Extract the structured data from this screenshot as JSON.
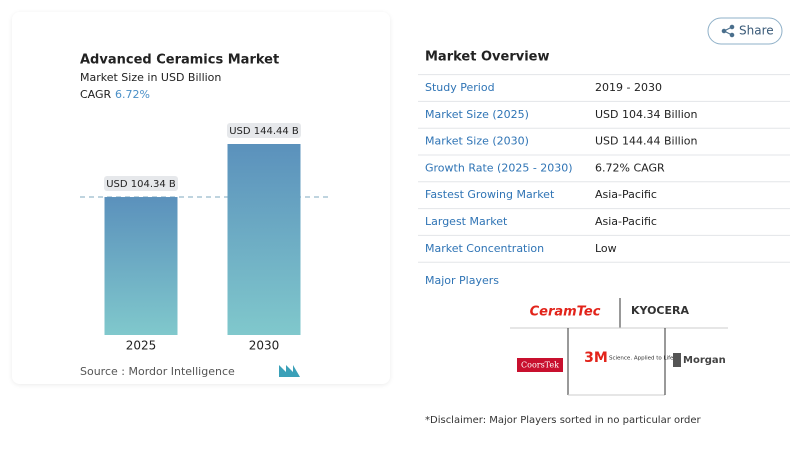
{
  "share": "Share",
  "chart_data": {
    "type": "bar",
    "title": "Advanced Ceramics Market",
    "subtitle": "Market Size in USD Billion",
    "cagr_label": "CAGR",
    "cagr_value": "6.72%",
    "categories": [
      "2025",
      "2030"
    ],
    "values": [
      104.34,
      144.44
    ],
    "value_labels": [
      "USD 104.34 B",
      "USD 144.44 B"
    ],
    "gradient": [
      "#5b91bc",
      "#80c8cc"
    ],
    "reference_line": true,
    "source": "Source :  Mordor Intelligence"
  },
  "overview": {
    "title": "Market Overview",
    "rows": [
      [
        "Study Period",
        "2019 - 2030"
      ],
      [
        "Market Size (2025)",
        "USD 104.34 Billion"
      ],
      [
        "Market Size (2030)",
        "USD 144.44 Billion"
      ],
      [
        "Growth Rate (2025 - 2030)",
        "6.72% CAGR"
      ],
      [
        "Fastest Growing Market",
        "Asia-Pacific"
      ],
      [
        "Largest Market",
        "Asia-Pacific"
      ],
      [
        "Market Concentration",
        "Low"
      ]
    ]
  },
  "players": {
    "title": "Major Players",
    "logos": [
      "CeramTec",
      "KYOCERA",
      "CoorsTek",
      "3M",
      "Science. Applied to Life.",
      "Morgan"
    ]
  },
  "disclaimer": "*Disclaimer: Major Players sorted in no particular order"
}
